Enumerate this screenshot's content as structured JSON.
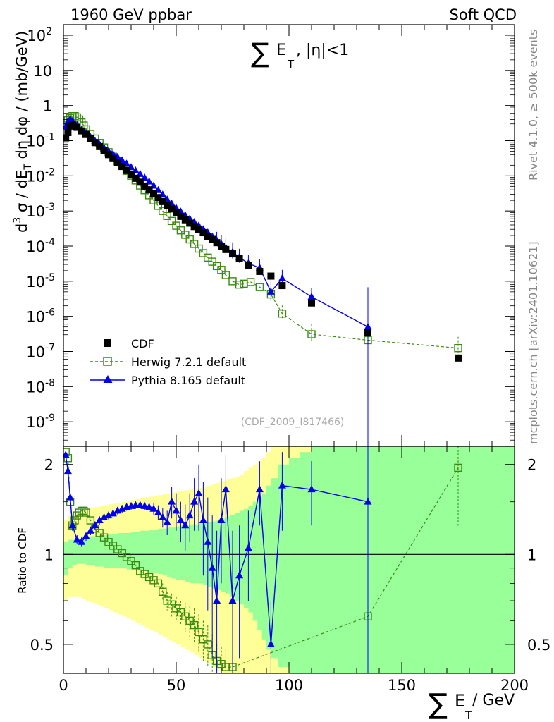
{
  "header": {
    "left": "1960 GeV ppbar",
    "right": "Soft QCD",
    "side_top": "Rivet 4.1.0, ≥ 500k events",
    "side_bottom": "mcplots.cern.ch [arXiv:2401.10621]",
    "analysis_id": "(CDF_2009_I817466)"
  },
  "colors": {
    "data": "#000000",
    "herwig": "#3a8a10",
    "pythia": "#0000ee",
    "band_green": "#99ff99",
    "band_yellow": "#ffff99"
  },
  "chart_data": [
    {
      "type": "scatter",
      "title": "∑ E_T, |η|<1",
      "title_sum": "∑",
      "title_E": "E",
      "title_T": "T",
      "title_rest": ", |η|<1",
      "ylabel": "d³σ / dE_T dη dφ / (mb/GeV)",
      "ylabel_parts": {
        "d": "d",
        "sup": "3",
        "mid": " σ / dE",
        "sub": "T",
        "tail": " dη dφ / (mb/GeV)"
      },
      "yscale": "log",
      "ylim": [
        2e-10,
        200
      ],
      "xlim": [
        0,
        200
      ],
      "yticks": [
        {
          "v": 100,
          "b": "10",
          "e": "2"
        },
        {
          "v": 10,
          "b": "10",
          "e": ""
        },
        {
          "v": 1,
          "b": "1",
          "e": ""
        },
        {
          "v": 0.1,
          "b": "10",
          "e": "-1"
        },
        {
          "v": 0.01,
          "b": "10",
          "e": "-2"
        },
        {
          "v": 0.001,
          "b": "10",
          "e": "-3"
        },
        {
          "v": 0.0001,
          "b": "10",
          "e": "-4"
        },
        {
          "v": 1e-05,
          "b": "10",
          "e": "-5"
        },
        {
          "v": 1e-06,
          "b": "10",
          "e": "-6"
        },
        {
          "v": 1e-07,
          "b": "10",
          "e": "-7"
        },
        {
          "v": 1e-08,
          "b": "10",
          "e": "-8"
        },
        {
          "v": 1e-09,
          "b": "10",
          "e": "-9"
        }
      ],
      "legend": {
        "position": "bottom-left",
        "entries": [
          "CDF",
          "Herwig 7.2.1 default",
          "Pythia 8.165 default"
        ]
      },
      "series": [
        {
          "name": "CDF",
          "x": [
            1,
            2,
            3,
            4,
            6,
            8,
            10,
            12,
            14,
            16,
            18,
            20,
            22,
            24,
            26,
            28,
            30,
            32,
            34,
            36,
            38,
            40,
            42,
            44,
            46,
            48,
            50,
            52,
            54,
            56,
            58,
            60,
            62,
            64,
            66,
            68,
            70,
            72,
            75,
            78,
            82,
            87,
            92,
            97,
            110,
            135,
            175
          ],
          "y": [
            0.12,
            0.17,
            0.26,
            0.28,
            0.24,
            0.19,
            0.15,
            0.115,
            0.088,
            0.068,
            0.052,
            0.04,
            0.031,
            0.024,
            0.0185,
            0.0142,
            0.011,
            0.0085,
            0.0066,
            0.0051,
            0.004,
            0.0031,
            0.0024,
            0.00185,
            0.00145,
            0.00114,
            0.0009,
            0.0007,
            0.00056,
            0.00045,
            0.00036,
            0.00029,
            0.00024,
            0.00019,
            0.000155,
            0.000125,
            0.0001,
            8e-05,
            6e-05,
            4.4e-05,
            2.8e-05,
            1.9e-05,
            1.4e-05,
            7.5e-06,
            2.4e-06,
            3.4e-07,
            6.5e-08
          ]
        },
        {
          "name": "Herwig 7.2.1 default",
          "style": "dashed",
          "marker": "open-square",
          "x": [
            1,
            2,
            3,
            4,
            5,
            6,
            7,
            8,
            9,
            10,
            12,
            14,
            16,
            18,
            20,
            22,
            24,
            26,
            28,
            30,
            32,
            34,
            36,
            38,
            40,
            42,
            44,
            46,
            48,
            50,
            52,
            54,
            56,
            58,
            60,
            62,
            64,
            66,
            68,
            70,
            72,
            75,
            78,
            80,
            83,
            87,
            92,
            97,
            110,
            135,
            175
          ],
          "y": [
            0.28,
            0.38,
            0.44,
            0.5,
            0.5,
            0.46,
            0.4,
            0.33,
            0.27,
            0.21,
            0.155,
            0.115,
            0.086,
            0.064,
            0.047,
            0.035,
            0.026,
            0.019,
            0.0139,
            0.0101,
            0.0074,
            0.0053,
            0.0039,
            0.0028,
            0.002,
            0.0014,
            0.001,
            0.00072,
            0.00052,
            0.00038,
            0.00028,
            0.00021,
            0.000155,
            0.000115,
            8.5e-05,
            6.3e-05,
            4.7e-05,
            3.6e-05,
            2.7e-05,
            2.1e-05,
            1.5e-05,
            1e-05,
            8e-06,
            8.5e-06,
            9.5e-06,
            6.8e-06,
            4.2e-06,
            1.2e-06,
            3.1e-07,
            2.1e-07,
            1.25e-07
          ],
          "err": [
            0,
            0,
            0,
            0,
            0,
            0,
            0,
            0,
            0,
            0,
            0,
            0,
            0,
            0,
            0,
            0,
            0,
            0,
            0,
            0,
            0,
            0,
            0,
            0,
            0,
            0,
            0,
            0,
            0,
            0,
            0,
            0,
            0,
            0,
            0,
            0,
            0,
            0,
            0,
            0,
            0,
            0,
            0,
            0,
            0,
            0,
            0.3,
            0.35,
            0.45,
            0.5,
            0.55
          ]
        },
        {
          "name": "Pythia 8.165 default",
          "style": "solid",
          "marker": "filled-triangle",
          "x": [
            1,
            2,
            3,
            4,
            6,
            8,
            10,
            12,
            14,
            16,
            18,
            20,
            22,
            24,
            26,
            28,
            30,
            32,
            34,
            36,
            38,
            40,
            42,
            44,
            46,
            48,
            50,
            52,
            54,
            56,
            58,
            60,
            62,
            64,
            66,
            68,
            70,
            72,
            75,
            78,
            82,
            87,
            92,
            97,
            110,
            135
          ],
          "y": [
            0.25,
            0.35,
            0.4,
            0.36,
            0.28,
            0.2,
            0.16,
            0.125,
            0.098,
            0.078,
            0.062,
            0.05,
            0.041,
            0.034,
            0.0275,
            0.022,
            0.0175,
            0.014,
            0.0112,
            0.0088,
            0.0068,
            0.0052,
            0.0039,
            0.0029,
            0.0021,
            0.0016,
            0.0012,
            0.00095,
            0.00075,
            0.0006,
            0.00048,
            0.00038,
            0.0003,
            0.00024,
            0.000185,
            0.000145,
            0.000115,
            9e-05,
            6.8e-05,
            4.8e-05,
            3.2e-05,
            2.4e-05,
            5e-06,
            1.2e-05,
            3.6e-06,
            5e-07
          ],
          "err": [
            0,
            0,
            0,
            0,
            0,
            0,
            0,
            0,
            0,
            0,
            0,
            0,
            0,
            0,
            0,
            0,
            0,
            0,
            0,
            0,
            0,
            0,
            0,
            0,
            0,
            0,
            0,
            0,
            0,
            0,
            0,
            0,
            0,
            0,
            0,
            0.3,
            0.3,
            0.35,
            0.35,
            0.3,
            0.3,
            0.3,
            0.5,
            0.3,
            0.3,
            5
          ]
        }
      ]
    },
    {
      "type": "line",
      "ylabel": "Ratio to CDF",
      "xlabel": "∑ E_T / GeV",
      "xlabel_sum": "∑",
      "xlabel_E": "E",
      "xlabel_T": "T",
      "xlabel_rest": " / GeV",
      "xlim": [
        0,
        200
      ],
      "ylim": [
        0.4,
        2.3
      ],
      "yscale": "log",
      "xticks": [
        0,
        50,
        100,
        150,
        200
      ],
      "xtick_labels": [
        "0",
        "50",
        "100",
        "150",
        "200"
      ],
      "yticks": [
        0.5,
        1,
        2
      ],
      "ytick_labels": [
        "0.5",
        "1",
        "2"
      ],
      "bands": {
        "x_edges": [
          0,
          2,
          4,
          6,
          8,
          10,
          12,
          14,
          16,
          18,
          20,
          22,
          24,
          26,
          28,
          30,
          32,
          34,
          36,
          38,
          40,
          42,
          44,
          46,
          48,
          50,
          52,
          54,
          56,
          58,
          60,
          62,
          64,
          66,
          68,
          70,
          72,
          74,
          76,
          78,
          80,
          82,
          84,
          86,
          88,
          90,
          92,
          95,
          100,
          105,
          110,
          120,
          150,
          200
        ],
        "green_lo": [
          0.85,
          0.9,
          0.92,
          0.93,
          0.93,
          0.92,
          0.92,
          0.91,
          0.91,
          0.9,
          0.9,
          0.9,
          0.9,
          0.9,
          0.89,
          0.89,
          0.89,
          0.88,
          0.88,
          0.87,
          0.87,
          0.86,
          0.85,
          0.84,
          0.83,
          0.82,
          0.82,
          0.81,
          0.8,
          0.8,
          0.8,
          0.79,
          0.78,
          0.77,
          0.76,
          0.75,
          0.74,
          0.72,
          0.7,
          0.68,
          0.66,
          0.64,
          0.6,
          0.56,
          0.52,
          0.48,
          0.45,
          0.42,
          0.4,
          0.4,
          0.4,
          0.4,
          0.4
        ],
        "green_hi": [
          1.1,
          1.12,
          1.12,
          1.13,
          1.14,
          1.14,
          1.15,
          1.15,
          1.16,
          1.16,
          1.17,
          1.17,
          1.18,
          1.18,
          1.18,
          1.19,
          1.19,
          1.2,
          1.2,
          1.21,
          1.21,
          1.22,
          1.22,
          1.23,
          1.23,
          1.24,
          1.25,
          1.25,
          1.26,
          1.26,
          1.27,
          1.28,
          1.28,
          1.29,
          1.3,
          1.32,
          1.34,
          1.36,
          1.38,
          1.4,
          1.42,
          1.45,
          1.5,
          1.55,
          1.6,
          1.7,
          1.8,
          2.0,
          2.1,
          2.2,
          2.3,
          2.3,
          2.3
        ],
        "yellow_lo": [
          0.7,
          0.72,
          0.72,
          0.72,
          0.71,
          0.7,
          0.69,
          0.68,
          0.67,
          0.66,
          0.65,
          0.64,
          0.63,
          0.62,
          0.61,
          0.6,
          0.59,
          0.58,
          0.57,
          0.56,
          0.55,
          0.54,
          0.53,
          0.52,
          0.51,
          0.5,
          0.49,
          0.48,
          0.47,
          0.46,
          0.45,
          0.44,
          0.43,
          0.42,
          0.41,
          0.4,
          0.4,
          0.4,
          0.4,
          0.4,
          0.4,
          0.4,
          0.4,
          0.4,
          0.4,
          0.4,
          0.4,
          0.4,
          0.4,
          0.4,
          0.4,
          0.4,
          0.4
        ],
        "yellow_hi": [
          1.3,
          1.35,
          1.36,
          1.38,
          1.4,
          1.42,
          1.43,
          1.44,
          1.45,
          1.46,
          1.47,
          1.48,
          1.49,
          1.5,
          1.51,
          1.52,
          1.53,
          1.54,
          1.55,
          1.56,
          1.57,
          1.58,
          1.59,
          1.6,
          1.61,
          1.62,
          1.63,
          1.64,
          1.65,
          1.66,
          1.67,
          1.68,
          1.7,
          1.72,
          1.74,
          1.76,
          1.78,
          1.8,
          1.82,
          1.85,
          1.9,
          1.95,
          2.0,
          2.05,
          2.1,
          2.2,
          2.3,
          2.3,
          2.3,
          2.3,
          2.3,
          2.3,
          2.3
        ]
      },
      "series": [
        {
          "name": "Herwig 7.2.1 default",
          "x": [
            1,
            2,
            3,
            4,
            5,
            6,
            7,
            8,
            9,
            10,
            12,
            14,
            16,
            18,
            20,
            22,
            24,
            26,
            28,
            30,
            32,
            34,
            36,
            38,
            40,
            42,
            44,
            46,
            48,
            50,
            52,
            54,
            56,
            58,
            60,
            62,
            64,
            66,
            68,
            70,
            72,
            75,
            135,
            175
          ],
          "y": [
            2.2,
            2.1,
            1.5,
            1.25,
            1.3,
            1.35,
            1.38,
            1.4,
            1.4,
            1.38,
            1.3,
            1.22,
            1.18,
            1.14,
            1.1,
            1.07,
            1.04,
            1.01,
            0.98,
            0.95,
            0.92,
            0.88,
            0.86,
            0.84,
            0.82,
            0.8,
            0.75,
            0.7,
            0.68,
            0.66,
            0.64,
            0.62,
            0.6,
            0.58,
            0.55,
            0.52,
            0.5,
            0.46,
            0.44,
            0.43,
            0.42,
            0.42,
            0.62,
            1.95
          ],
          "err": [
            0,
            0,
            0,
            0,
            0,
            0,
            0,
            0,
            0,
            0,
            0,
            0,
            0,
            0,
            0,
            0,
            0,
            0,
            0,
            0,
            0,
            0,
            0,
            0,
            0,
            0,
            0.05,
            0.05,
            0.06,
            0.06,
            0.06,
            0.07,
            0.07,
            0.08,
            0.08,
            0.08,
            0.08,
            0.08,
            0.06,
            0.06,
            0.06,
            0.06,
            0.2,
            0.7
          ]
        },
        {
          "name": "Pythia 8.165 default",
          "x": [
            1,
            2,
            3,
            4,
            6,
            8,
            10,
            12,
            14,
            16,
            18,
            20,
            22,
            24,
            26,
            28,
            30,
            32,
            34,
            36,
            38,
            40,
            42,
            44,
            46,
            48,
            50,
            52,
            54,
            56,
            58,
            60,
            62,
            64,
            66,
            68,
            70,
            72,
            75,
            78,
            82,
            87,
            92,
            97,
            110,
            135
          ],
          "y": [
            2.15,
            1.9,
            1.55,
            1.25,
            1.12,
            1.1,
            1.15,
            1.2,
            1.25,
            1.3,
            1.33,
            1.35,
            1.37,
            1.4,
            1.42,
            1.44,
            1.45,
            1.46,
            1.46,
            1.45,
            1.44,
            1.42,
            1.38,
            1.33,
            1.28,
            1.5,
            1.4,
            1.3,
            1.25,
            1.35,
            1.5,
            1.6,
            1.3,
            1.1,
            0.9,
            0.7,
            1.3,
            1.65,
            0.7,
            0.85,
            1.05,
            1.65,
            0.5,
            1.7,
            1.65,
            1.5
          ],
          "err": [
            0.05,
            0.05,
            0.05,
            0.05,
            0.04,
            0.04,
            0.04,
            0.04,
            0.04,
            0.04,
            0.04,
            0.04,
            0.04,
            0.04,
            0.04,
            0.04,
            0.04,
            0.04,
            0.04,
            0.04,
            0.05,
            0.06,
            0.08,
            0.1,
            0.12,
            0.18,
            0.2,
            0.2,
            0.22,
            0.25,
            0.3,
            0.4,
            0.45,
            0.45,
            0.45,
            0.5,
            0.5,
            0.5,
            0.5,
            0.4,
            0.35,
            0.4,
            0.2,
            0.5,
            0.4,
            1.5
          ]
        }
      ]
    }
  ]
}
